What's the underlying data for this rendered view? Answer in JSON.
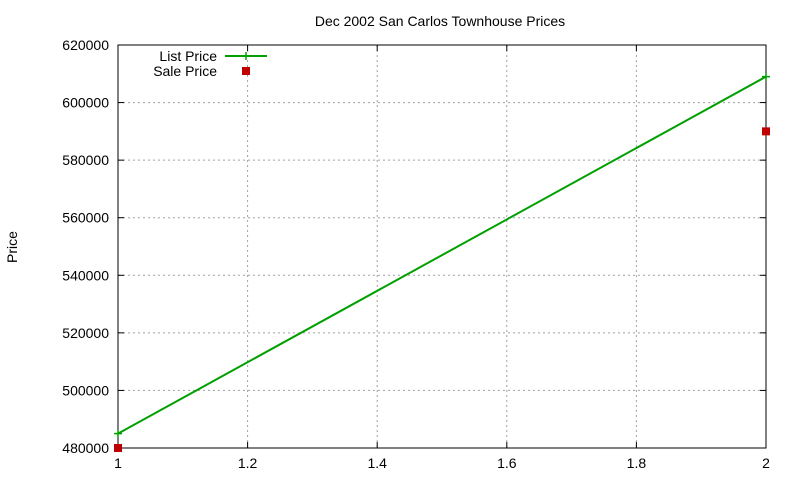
{
  "chart_data": {
    "type": "line",
    "title": "Dec 2002 San Carlos Townhouse Prices",
    "xlabel": "",
    "ylabel": "Price",
    "xlim": [
      1,
      2
    ],
    "ylim": [
      480000,
      620000
    ],
    "x_ticks": [
      1,
      1.2,
      1.4,
      1.6,
      1.8,
      2
    ],
    "x_tick_labels": [
      "1",
      "1.2",
      "1.4",
      "1.6",
      "1.8",
      "2"
    ],
    "y_ticks": [
      480000,
      500000,
      520000,
      540000,
      560000,
      580000,
      600000,
      620000
    ],
    "y_tick_labels": [
      "480000",
      "500000",
      "520000",
      "540000",
      "560000",
      "580000",
      "600000",
      "620000"
    ],
    "grid": true,
    "legend_position": "top-left",
    "series": [
      {
        "name": "List Price",
        "style": "linespoints",
        "marker": "plus",
        "color": "#00a000",
        "points": [
          {
            "x": 1,
            "y": 485000
          },
          {
            "x": 2,
            "y": 609000
          }
        ]
      },
      {
        "name": "Sale Price",
        "style": "points",
        "marker": "square",
        "color": "#c00000",
        "points": [
          {
            "x": 1,
            "y": 480000
          },
          {
            "x": 2,
            "y": 590000
          }
        ]
      }
    ]
  }
}
